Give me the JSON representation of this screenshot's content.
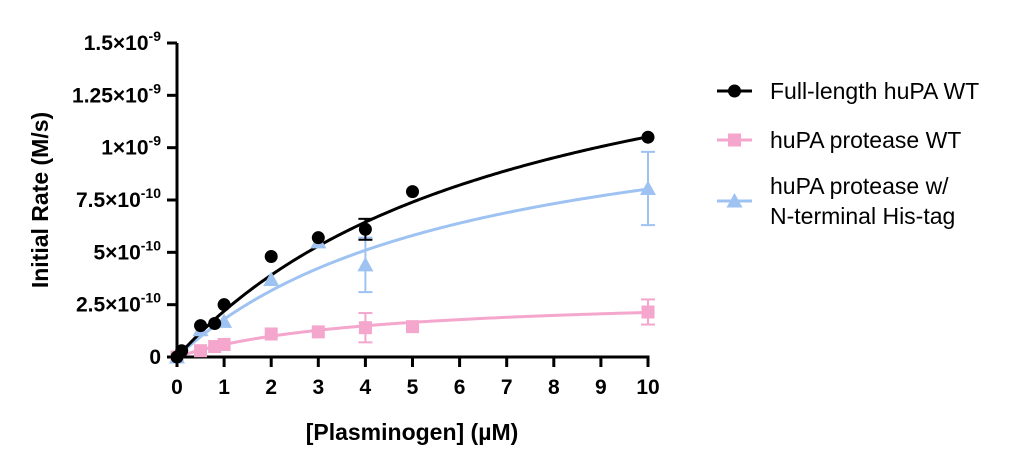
{
  "chart_data": {
    "type": "scatter",
    "title": "",
    "xlabel": "[Plasminogen] (µM)",
    "ylabel": "Initial Rate (M/s)",
    "xlim": [
      0,
      10
    ],
    "ylim": [
      0,
      1.5e-09
    ],
    "x_ticks": [
      0,
      1,
      2,
      3,
      4,
      5,
      6,
      7,
      8,
      9,
      10
    ],
    "x_tick_labels": [
      "0",
      "1",
      "2",
      "3",
      "4",
      "5",
      "6",
      "7",
      "8",
      "9",
      "10"
    ],
    "y_ticks": [
      0,
      2.5e-10,
      5e-10,
      7.5e-10,
      1e-09,
      1.25e-09,
      1.5e-09
    ],
    "y_tick_labels": [
      {
        "mantissa": "0",
        "exponent": ""
      },
      {
        "mantissa": "2.5×10",
        "exponent": "-10"
      },
      {
        "mantissa": "5×10",
        "exponent": "-10"
      },
      {
        "mantissa": "7.5×10",
        "exponent": "-10"
      },
      {
        "mantissa": "1×10",
        "exponent": "-9"
      },
      {
        "mantissa": "1.25×10",
        "exponent": "-9"
      },
      {
        "mantissa": "1.5×10",
        "exponent": "-9"
      }
    ],
    "grid": false,
    "legend_position": "right",
    "series": [
      {
        "name": "Full-length huPA WT",
        "color": "#000000",
        "marker": "circle",
        "points": [
          {
            "x": 0,
            "y": 0
          },
          {
            "x": 0.1,
            "y": 3e-11
          },
          {
            "x": 0.5,
            "y": 1.5e-10
          },
          {
            "x": 0.8,
            "y": 1.6e-10
          },
          {
            "x": 1,
            "y": 2.5e-10
          },
          {
            "x": 2,
            "y": 4.8e-10
          },
          {
            "x": 3,
            "y": 5.7e-10
          },
          {
            "x": 4,
            "y": 6.1e-10,
            "err": 5e-11
          },
          {
            "x": 5,
            "y": 7.9e-10
          },
          {
            "x": 10,
            "y": 1.05e-09
          }
        ],
        "fit": {
          "model": "michaelis-menten",
          "vmax": 1.82e-09,
          "km": 7.3
        }
      },
      {
        "name": "huPA protease WT",
        "color": "#f4a6cc",
        "marker": "square",
        "points": [
          {
            "x": 0,
            "y": 0
          },
          {
            "x": 0.5,
            "y": 3e-11
          },
          {
            "x": 0.8,
            "y": 5e-11
          },
          {
            "x": 1,
            "y": 6e-11
          },
          {
            "x": 2,
            "y": 1.1e-10
          },
          {
            "x": 3,
            "y": 1.2e-10
          },
          {
            "x": 4,
            "y": 1.4e-10,
            "err": 7e-11
          },
          {
            "x": 5,
            "y": 1.45e-10
          },
          {
            "x": 10,
            "y": 2.15e-10,
            "err": 6e-11
          }
        ],
        "fit": {
          "model": "michaelis-menten",
          "vmax": 2.98e-10,
          "km": 4.0
        }
      },
      {
        "name": "huPA protease w/\nN-terminal His-tag",
        "color": "#9ec3f2",
        "marker": "triangle",
        "points": [
          {
            "x": 0,
            "y": 0
          },
          {
            "x": 0.5,
            "y": 1.3e-10
          },
          {
            "x": 1,
            "y": 1.7e-10
          },
          {
            "x": 2,
            "y": 3.7e-10
          },
          {
            "x": 3,
            "y": 5.5e-10
          },
          {
            "x": 4,
            "y": 4.4e-10,
            "err": 1.3e-10
          },
          {
            "x": 10,
            "y": 8.05e-10,
            "err": 1.75e-10
          }
        ],
        "fit": {
          "model": "michaelis-menten",
          "vmax": 1.3e-09,
          "km": 6.2
        }
      }
    ]
  }
}
